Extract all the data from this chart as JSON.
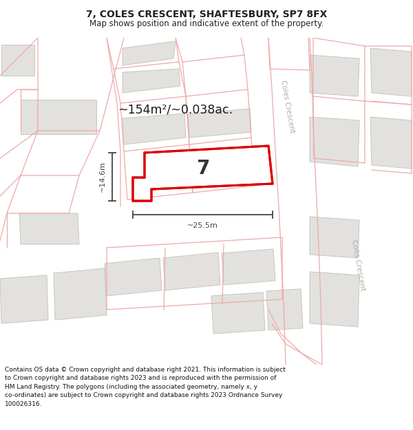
{
  "title_line1": "7, COLES CRESCENT, SHAFTESBURY, SP7 8FX",
  "title_line2": "Map shows position and indicative extent of the property.",
  "footer": "Contains OS data © Crown copyright and database right 2021. This information is subject to Crown copyright and database rights 2023 and is reproduced with the permission of HM Land Registry. The polygons (including the associated geometry, namely x, y co-ordinates) are subject to Crown copyright and database rights 2023 Ordnance Survey 100026316.",
  "area_label": "~154m²/~0.038ac.",
  "width_label": "~25.5m",
  "height_label": "~14.6m",
  "plot_number": "7",
  "map_bg": "#f8f7f5",
  "building_fill": "#e3e1de",
  "building_stroke": "#c8c5c0",
  "red_line_color": "#dd0000",
  "pink_line_color": "#f0a8a8",
  "measure_color": "#444444",
  "street_label_color": "#b0aeab",
  "title_color": "#222222",
  "footer_color": "#111111"
}
